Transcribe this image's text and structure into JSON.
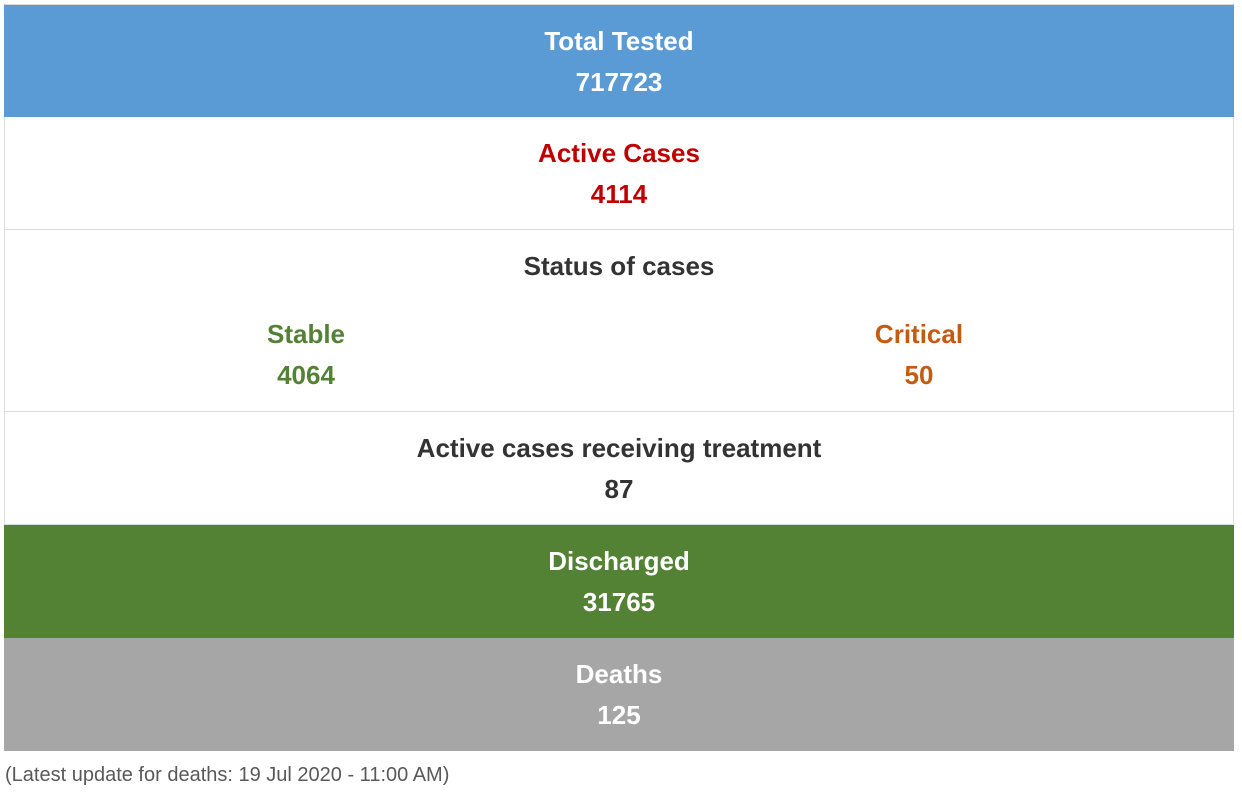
{
  "total_tested": {
    "label": "Total Tested",
    "value": "717723"
  },
  "active_cases": {
    "label": "Active Cases",
    "value": "4114"
  },
  "status_of_cases": {
    "title": "Status of cases",
    "stable": {
      "label": "Stable",
      "value": "4064"
    },
    "critical": {
      "label": "Critical",
      "value": "50"
    }
  },
  "treatment": {
    "label": "Active cases receiving treatment",
    "value": "87"
  },
  "discharged": {
    "label": "Discharged",
    "value": "31765"
  },
  "deaths": {
    "label": "Deaths",
    "value": "125"
  },
  "footnote": "(Latest update for deaths: 19 Jul 2020 - 11:00 AM)",
  "colors": {
    "total_bg": "#5b9bd5",
    "active_text": "#c00000",
    "stable_text": "#548235",
    "critical_text": "#c55a11",
    "discharged_bg": "#548235",
    "deaths_bg": "#a6a6a6"
  }
}
